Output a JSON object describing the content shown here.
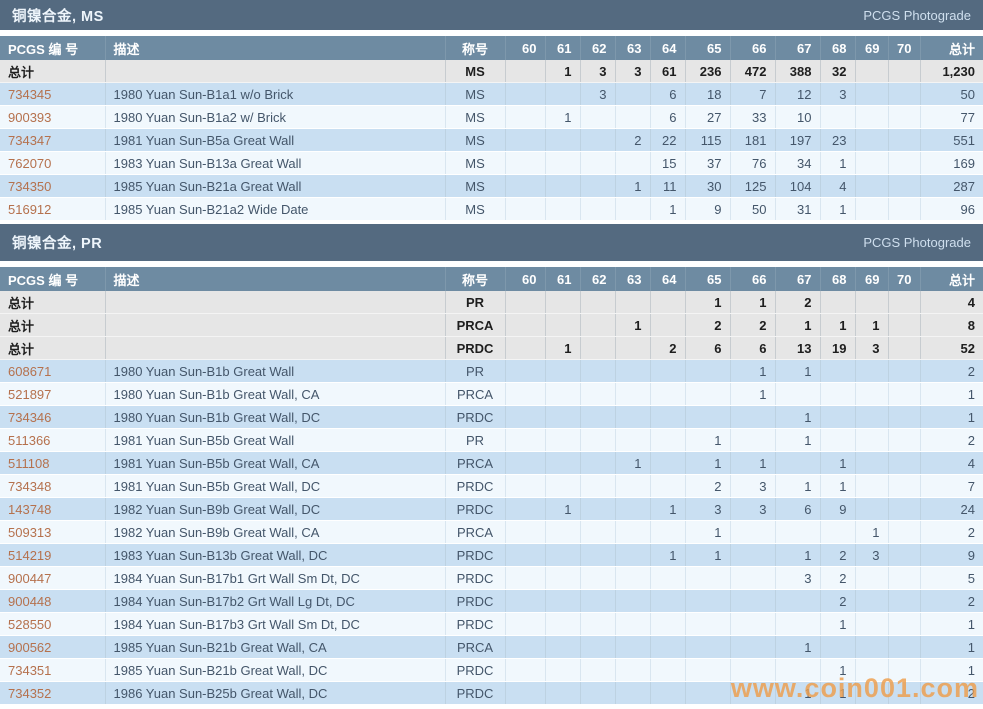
{
  "watermark": {
    "text": "www.coin001.com",
    "color": "#ee9e4a"
  },
  "colors": {
    "section_bar": "#546a80",
    "header_bar": "#6e8ba2",
    "summary_row": "#e6e6e6",
    "row_blue": "#c9dff2",
    "row_white": "#f1f8fd",
    "link": "#b5714d",
    "cell_text": "#44566a"
  },
  "grade_columns": [
    "60",
    "61",
    "62",
    "63",
    "64",
    "65",
    "66",
    "67",
    "68",
    "69",
    "70"
  ],
  "column_labels": {
    "number": "PCGS 编 号",
    "description": "描述",
    "designation": "称号",
    "total": "总计"
  },
  "summary_label": "总计",
  "tables": [
    {
      "title": "铜镍合金, MS",
      "photograde_label": "PCGS Photograde",
      "summary_rows": [
        {
          "designation": "MS",
          "grades": {
            "61": "1",
            "62": "3",
            "63": "3",
            "64": "61",
            "65": "236",
            "66": "472",
            "67": "388",
            "68": "32"
          },
          "total": "1,230"
        }
      ],
      "rows": [
        {
          "number": "734345",
          "description": "1980 Yuan Sun-B1a1 w/o Brick",
          "designation": "MS",
          "grades": {
            "62": "3",
            "64": "6",
            "65": "18",
            "66": "7",
            "67": "12",
            "68": "3"
          },
          "total": "50"
        },
        {
          "number": "900393",
          "description": "1980 Yuan Sun-B1a2 w/ Brick",
          "designation": "MS",
          "grades": {
            "61": "1",
            "64": "6",
            "65": "27",
            "66": "33",
            "67": "10"
          },
          "total": "77"
        },
        {
          "number": "734347",
          "description": "1981 Yuan Sun-B5a Great Wall",
          "designation": "MS",
          "grades": {
            "63": "2",
            "64": "22",
            "65": "115",
            "66": "181",
            "67": "197",
            "68": "23"
          },
          "total": "551"
        },
        {
          "number": "762070",
          "description": "1983 Yuan Sun-B13a Great Wall",
          "designation": "MS",
          "grades": {
            "64": "15",
            "65": "37",
            "66": "76",
            "67": "34",
            "68": "1"
          },
          "total": "169"
        },
        {
          "number": "734350",
          "description": "1985 Yuan Sun-B21a Great Wall",
          "designation": "MS",
          "grades": {
            "63": "1",
            "64": "11",
            "65": "30",
            "66": "125",
            "67": "104",
            "68": "4"
          },
          "total": "287"
        },
        {
          "number": "516912",
          "description": "1985 Yuan Sun-B21a2 Wide Date",
          "designation": "MS",
          "grades": {
            "64": "1",
            "65": "9",
            "66": "50",
            "67": "31",
            "68": "1"
          },
          "total": "96"
        }
      ]
    },
    {
      "title": "铜镍合金, PR",
      "photograde_label": "PCGS Photograde",
      "summary_rows": [
        {
          "designation": "PR",
          "grades": {
            "65": "1",
            "66": "1",
            "67": "2"
          },
          "total": "4"
        },
        {
          "designation": "PRCA",
          "grades": {
            "63": "1",
            "65": "2",
            "66": "2",
            "67": "1",
            "68": "1",
            "69": "1"
          },
          "total": "8"
        },
        {
          "designation": "PRDC",
          "grades": {
            "61": "1",
            "64": "2",
            "65": "6",
            "66": "6",
            "67": "13",
            "68": "19",
            "69": "3"
          },
          "total": "52"
        }
      ],
      "rows": [
        {
          "number": "608671",
          "description": "1980 Yuan Sun-B1b Great Wall",
          "designation": "PR",
          "grades": {
            "66": "1",
            "67": "1"
          },
          "total": "2"
        },
        {
          "number": "521897",
          "description": "1980 Yuan Sun-B1b Great Wall, CA",
          "designation": "PRCA",
          "grades": {
            "66": "1"
          },
          "total": "1"
        },
        {
          "number": "734346",
          "description": "1980 Yuan Sun-B1b Great Wall, DC",
          "designation": "PRDC",
          "grades": {
            "67": "1"
          },
          "total": "1"
        },
        {
          "number": "511366",
          "description": "1981 Yuan Sun-B5b Great Wall",
          "designation": "PR",
          "grades": {
            "65": "1",
            "67": "1"
          },
          "total": "2"
        },
        {
          "number": "511108",
          "description": "1981 Yuan Sun-B5b Great Wall, CA",
          "designation": "PRCA",
          "grades": {
            "63": "1",
            "65": "1",
            "66": "1",
            "68": "1"
          },
          "total": "4"
        },
        {
          "number": "734348",
          "description": "1981 Yuan Sun-B5b Great Wall, DC",
          "designation": "PRDC",
          "grades": {
            "65": "2",
            "66": "3",
            "67": "1",
            "68": "1"
          },
          "total": "7"
        },
        {
          "number": "143748",
          "description": "1982 Yuan Sun-B9b Great Wall, DC",
          "designation": "PRDC",
          "grades": {
            "61": "1",
            "64": "1",
            "65": "3",
            "66": "3",
            "67": "6",
            "68": "9"
          },
          "total": "24"
        },
        {
          "number": "509313",
          "description": "1982 Yuan Sun-B9b Great Wall, CA",
          "designation": "PRCA",
          "grades": {
            "65": "1",
            "69": "1"
          },
          "total": "2"
        },
        {
          "number": "514219",
          "description": "1983 Yuan Sun-B13b Great Wall, DC",
          "designation": "PRDC",
          "grades": {
            "64": "1",
            "65": "1",
            "67": "1",
            "68": "2",
            "69": "3"
          },
          "total": "9"
        },
        {
          "number": "900447",
          "description": "1984 Yuan Sun-B17b1 Grt Wall Sm Dt, DC",
          "designation": "PRDC",
          "grades": {
            "67": "3",
            "68": "2"
          },
          "total": "5"
        },
        {
          "number": "900448",
          "description": "1984 Yuan Sun-B17b2 Grt Wall Lg Dt, DC",
          "designation": "PRDC",
          "grades": {
            "68": "2"
          },
          "total": "2"
        },
        {
          "number": "528550",
          "description": "1984 Yuan Sun-B17b3 Grt Wall Sm Dt, DC",
          "designation": "PRDC",
          "grades": {
            "68": "1"
          },
          "total": "1"
        },
        {
          "number": "900562",
          "description": "1985 Yuan Sun-B21b Great Wall, CA",
          "designation": "PRCA",
          "grades": {
            "67": "1"
          },
          "total": "1"
        },
        {
          "number": "734351",
          "description": "1985 Yuan Sun-B21b Great Wall, DC",
          "designation": "PRDC",
          "grades": {
            "68": "1"
          },
          "total": "1"
        },
        {
          "number": "734352",
          "description": "1986 Yuan Sun-B25b Great Wall, DC",
          "designation": "PRDC",
          "grades": {
            "67": "1",
            "68": "1"
          },
          "total": "2"
        }
      ]
    }
  ]
}
